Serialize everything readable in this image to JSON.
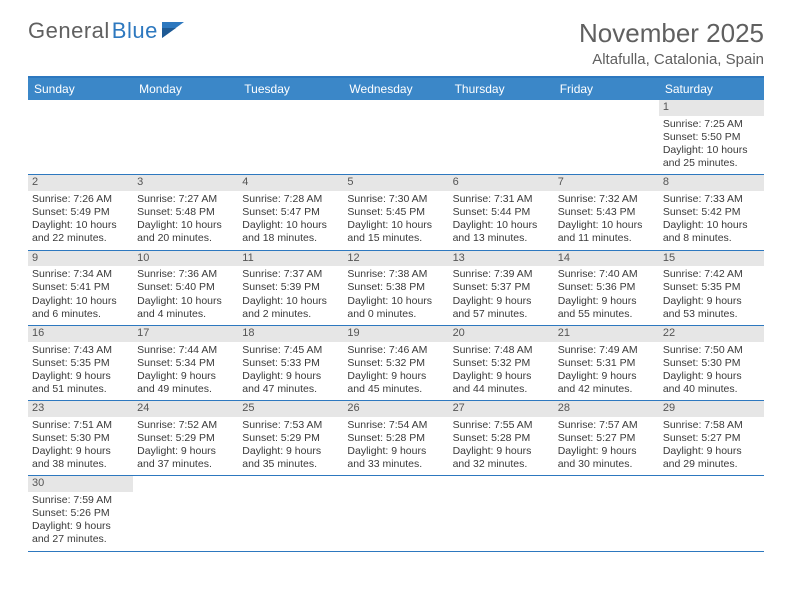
{
  "logo": {
    "general": "General",
    "blue": "Blue"
  },
  "title": "November 2025",
  "location": "Altafulla, Catalonia, Spain",
  "dayNames": [
    "Sunday",
    "Monday",
    "Tuesday",
    "Wednesday",
    "Thursday",
    "Friday",
    "Saturday"
  ],
  "colors": {
    "header_bg": "#3b87c8",
    "border": "#2d78bf",
    "daynum_bg": "#e6e6e6",
    "text": "#3a3a3a",
    "title_text": "#606060"
  },
  "weeks": [
    [
      null,
      null,
      null,
      null,
      null,
      null,
      {
        "n": "1",
        "sr": "7:25 AM",
        "ss": "5:50 PM",
        "dl": "10 hours and 25 minutes."
      }
    ],
    [
      {
        "n": "2",
        "sr": "7:26 AM",
        "ss": "5:49 PM",
        "dl": "10 hours and 22 minutes."
      },
      {
        "n": "3",
        "sr": "7:27 AM",
        "ss": "5:48 PM",
        "dl": "10 hours and 20 minutes."
      },
      {
        "n": "4",
        "sr": "7:28 AM",
        "ss": "5:47 PM",
        "dl": "10 hours and 18 minutes."
      },
      {
        "n": "5",
        "sr": "7:30 AM",
        "ss": "5:45 PM",
        "dl": "10 hours and 15 minutes."
      },
      {
        "n": "6",
        "sr": "7:31 AM",
        "ss": "5:44 PM",
        "dl": "10 hours and 13 minutes."
      },
      {
        "n": "7",
        "sr": "7:32 AM",
        "ss": "5:43 PM",
        "dl": "10 hours and 11 minutes."
      },
      {
        "n": "8",
        "sr": "7:33 AM",
        "ss": "5:42 PM",
        "dl": "10 hours and 8 minutes."
      }
    ],
    [
      {
        "n": "9",
        "sr": "7:34 AM",
        "ss": "5:41 PM",
        "dl": "10 hours and 6 minutes."
      },
      {
        "n": "10",
        "sr": "7:36 AM",
        "ss": "5:40 PM",
        "dl": "10 hours and 4 minutes."
      },
      {
        "n": "11",
        "sr": "7:37 AM",
        "ss": "5:39 PM",
        "dl": "10 hours and 2 minutes."
      },
      {
        "n": "12",
        "sr": "7:38 AM",
        "ss": "5:38 PM",
        "dl": "10 hours and 0 minutes."
      },
      {
        "n": "13",
        "sr": "7:39 AM",
        "ss": "5:37 PM",
        "dl": "9 hours and 57 minutes."
      },
      {
        "n": "14",
        "sr": "7:40 AM",
        "ss": "5:36 PM",
        "dl": "9 hours and 55 minutes."
      },
      {
        "n": "15",
        "sr": "7:42 AM",
        "ss": "5:35 PM",
        "dl": "9 hours and 53 minutes."
      }
    ],
    [
      {
        "n": "16",
        "sr": "7:43 AM",
        "ss": "5:35 PM",
        "dl": "9 hours and 51 minutes."
      },
      {
        "n": "17",
        "sr": "7:44 AM",
        "ss": "5:34 PM",
        "dl": "9 hours and 49 minutes."
      },
      {
        "n": "18",
        "sr": "7:45 AM",
        "ss": "5:33 PM",
        "dl": "9 hours and 47 minutes."
      },
      {
        "n": "19",
        "sr": "7:46 AM",
        "ss": "5:32 PM",
        "dl": "9 hours and 45 minutes."
      },
      {
        "n": "20",
        "sr": "7:48 AM",
        "ss": "5:32 PM",
        "dl": "9 hours and 44 minutes."
      },
      {
        "n": "21",
        "sr": "7:49 AM",
        "ss": "5:31 PM",
        "dl": "9 hours and 42 minutes."
      },
      {
        "n": "22",
        "sr": "7:50 AM",
        "ss": "5:30 PM",
        "dl": "9 hours and 40 minutes."
      }
    ],
    [
      {
        "n": "23",
        "sr": "7:51 AM",
        "ss": "5:30 PM",
        "dl": "9 hours and 38 minutes."
      },
      {
        "n": "24",
        "sr": "7:52 AM",
        "ss": "5:29 PM",
        "dl": "9 hours and 37 minutes."
      },
      {
        "n": "25",
        "sr": "7:53 AM",
        "ss": "5:29 PM",
        "dl": "9 hours and 35 minutes."
      },
      {
        "n": "26",
        "sr": "7:54 AM",
        "ss": "5:28 PM",
        "dl": "9 hours and 33 minutes."
      },
      {
        "n": "27",
        "sr": "7:55 AM",
        "ss": "5:28 PM",
        "dl": "9 hours and 32 minutes."
      },
      {
        "n": "28",
        "sr": "7:57 AM",
        "ss": "5:27 PM",
        "dl": "9 hours and 30 minutes."
      },
      {
        "n": "29",
        "sr": "7:58 AM",
        "ss": "5:27 PM",
        "dl": "9 hours and 29 minutes."
      }
    ],
    [
      {
        "n": "30",
        "sr": "7:59 AM",
        "ss": "5:26 PM",
        "dl": "9 hours and 27 minutes."
      },
      null,
      null,
      null,
      null,
      null,
      null
    ]
  ],
  "labels": {
    "sunrise": "Sunrise:",
    "sunset": "Sunset:",
    "daylight": "Daylight:"
  }
}
